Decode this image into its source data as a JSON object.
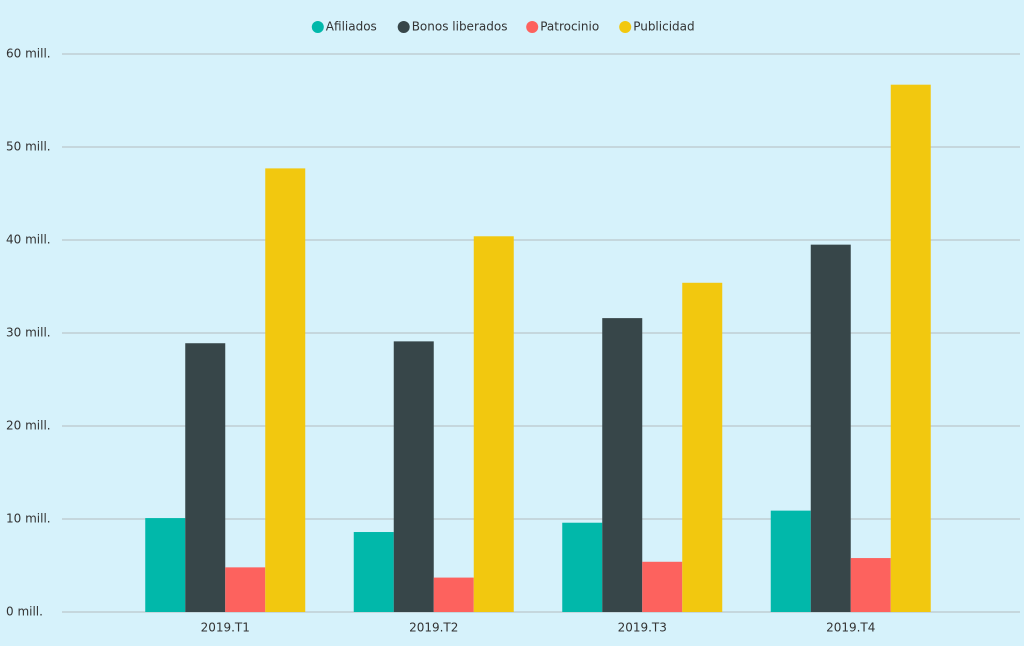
{
  "chart_data": {
    "type": "bar",
    "categories": [
      "2019.T1",
      "2019.T2",
      "2019.T3",
      "2019.T4"
    ],
    "series": [
      {
        "name": "Afiliados",
        "color": "#01b8aa",
        "values": [
          10.1,
          8.6,
          9.6,
          10.9
        ]
      },
      {
        "name": "Bonos liberados",
        "color": "#374649",
        "values": [
          28.9,
          29.1,
          31.6,
          39.5
        ]
      },
      {
        "name": "Patrocinio",
        "color": "#fd625e",
        "values": [
          4.8,
          3.7,
          5.4,
          5.8
        ]
      },
      {
        "name": "Publicidad",
        "color": "#f2c80f",
        "values": [
          47.7,
          40.4,
          35.4,
          56.7
        ]
      }
    ],
    "ylim": [
      0,
      60
    ],
    "yticks": [
      {
        "value": 0,
        "label": "0 mill."
      },
      {
        "value": 10,
        "label": "10 mill."
      },
      {
        "value": 20,
        "label": "20 mill."
      },
      {
        "value": 30,
        "label": "30 mill."
      },
      {
        "value": 40,
        "label": "40 mill."
      },
      {
        "value": 50,
        "label": "50 mill."
      },
      {
        "value": 60,
        "label": "60 mill."
      }
    ],
    "grid": true,
    "legend": "top"
  }
}
